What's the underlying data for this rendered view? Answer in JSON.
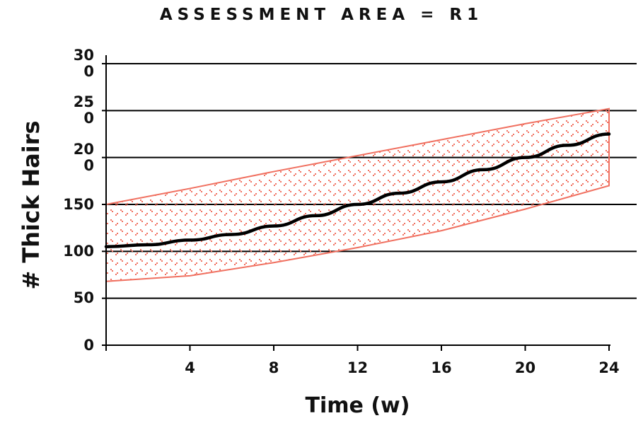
{
  "chart_data": {
    "type": "line",
    "title": "ASSESSMENT AREA = R1",
    "xlabel": "Time (w)",
    "ylabel": "# Thick Hairs",
    "xlim": [
      0,
      24
    ],
    "ylim": [
      0,
      300
    ],
    "x_ticks": [
      "4",
      "8",
      "12",
      "16",
      "20",
      "24"
    ],
    "x_tick_values": [
      4,
      8,
      12,
      16,
      20,
      24
    ],
    "y_ticks": [
      "0",
      "50",
      "100",
      "150",
      "20\n0",
      "25\n0",
      "30\n0"
    ],
    "y_tick_values": [
      0,
      50,
      100,
      150,
      200,
      250,
      300
    ],
    "grid": "horizontal",
    "series": [
      {
        "type": "line",
        "color": "#000000",
        "x": [
          0,
          2,
          4,
          6,
          8,
          10,
          12,
          14,
          16,
          18,
          20,
          22,
          24
        ],
        "y": [
          105,
          107,
          112,
          118,
          127,
          138,
          150,
          162,
          174,
          187,
          200,
          213,
          225
        ]
      },
      {
        "type": "band",
        "color": "#f07060",
        "x": [
          0,
          4,
          8,
          12,
          16,
          20,
          24
        ],
        "upper": [
          150,
          167,
          185,
          202,
          219,
          236,
          252
        ],
        "lower": [
          68,
          74,
          88,
          104,
          122,
          145,
          170
        ]
      }
    ]
  }
}
